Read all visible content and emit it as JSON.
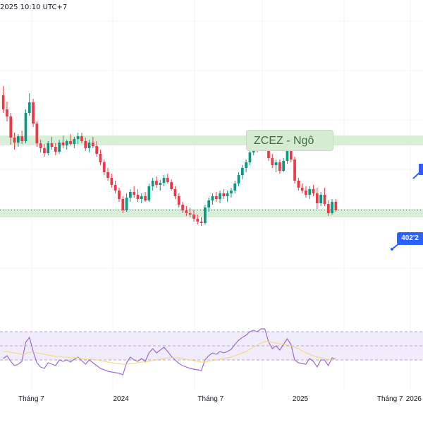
{
  "header": {
    "timestamp": "2025 10:10 UTC+7"
  },
  "symbol_box": {
    "label": "ZCEZ - Ngô"
  },
  "price_label": {
    "value": "402'2"
  },
  "colors": {
    "up": "#089981",
    "down": "#f23645",
    "zone_fill": "#d5ecd2",
    "rsi_band": "#f1ecfb",
    "rsi_line": "#9c6ad7",
    "rsi_ma": "#f5d76e",
    "accent": "#2962ff"
  },
  "time_axis": {
    "labels": [
      {
        "text": "Tháng 7",
        "slot": 8
      },
      {
        "text": "2024",
        "slot": 32
      },
      {
        "text": "Tháng 7",
        "slot": 56
      },
      {
        "text": "2025",
        "slot": 80
      },
      {
        "text": "Tháng 7",
        "slot": 104
      },
      {
        "text": "2026",
        "slot": 128
      }
    ]
  },
  "chart_data": [
    {
      "type": "candlestick",
      "title": "ZCEZ - Ngô",
      "ylim": [
        300,
        600
      ],
      "zones": [
        [
          494,
          508
        ],
        [
          392,
          404
        ]
      ],
      "current_price": 402.25,
      "candles": [
        [
          565,
          578,
          540,
          545
        ],
        [
          545,
          556,
          528,
          535
        ],
        [
          535,
          540,
          495,
          505
        ],
        [
          505,
          512,
          488,
          498
        ],
        [
          498,
          510,
          492,
          507
        ],
        [
          507,
          515,
          496,
          500
        ],
        [
          500,
          545,
          497,
          540
        ],
        [
          540,
          568,
          536,
          555
        ],
        [
          555,
          560,
          520,
          525
        ],
        [
          525,
          528,
          492,
          497
        ],
        [
          497,
          502,
          484,
          490
        ],
        [
          490,
          496,
          478,
          483
        ],
        [
          483,
          500,
          480,
          497
        ],
        [
          497,
          506,
          488,
          492
        ],
        [
          492,
          497,
          480,
          485
        ],
        [
          485,
          502,
          482,
          498
        ],
        [
          498,
          508,
          490,
          494
        ],
        [
          494,
          502,
          488,
          500
        ],
        [
          500,
          510,
          494,
          496
        ],
        [
          496,
          506,
          490,
          503
        ],
        [
          503,
          512,
          496,
          507
        ],
        [
          507,
          512,
          497,
          500
        ],
        [
          500,
          505,
          486,
          490
        ],
        [
          490,
          502,
          484,
          498
        ],
        [
          498,
          506,
          490,
          493
        ],
        [
          493,
          500,
          478,
          482
        ],
        [
          482,
          488,
          466,
          470
        ],
        [
          470,
          474,
          452,
          456
        ],
        [
          456,
          462,
          444,
          448
        ],
        [
          448,
          454,
          434,
          438
        ],
        [
          438,
          444,
          426,
          430
        ],
        [
          430,
          434,
          414,
          418
        ],
        [
          418,
          422,
          398,
          402
        ],
        [
          402,
          426,
          400,
          420
        ],
        [
          420,
          432,
          414,
          428
        ],
        [
          428,
          436,
          420,
          424
        ],
        [
          424,
          432,
          414,
          418
        ],
        [
          418,
          426,
          412,
          422
        ],
        [
          422,
          428,
          414,
          416
        ],
        [
          416,
          440,
          414,
          436
        ],
        [
          436,
          448,
          430,
          444
        ],
        [
          444,
          450,
          434,
          438
        ],
        [
          438,
          445,
          430,
          441
        ],
        [
          441,
          452,
          436,
          448
        ],
        [
          448,
          454,
          440,
          442
        ],
        [
          442,
          446,
          430,
          432
        ],
        [
          432,
          436,
          418,
          422
        ],
        [
          422,
          426,
          406,
          410
        ],
        [
          410,
          414,
          398,
          402
        ],
        [
          402,
          408,
          394,
          398
        ],
        [
          398,
          406,
          392,
          396
        ],
        [
          396,
          402,
          386,
          390
        ],
        [
          390,
          396,
          382,
          386
        ],
        [
          386,
          392,
          380,
          384
        ],
        [
          384,
          410,
          382,
          406
        ],
        [
          406,
          420,
          400,
          416
        ],
        [
          416,
          426,
          410,
          422
        ],
        [
          422,
          428,
          414,
          418
        ],
        [
          418,
          430,
          412,
          426
        ],
        [
          426,
          432,
          418,
          422
        ],
        [
          422,
          430,
          414,
          426
        ],
        [
          426,
          434,
          420,
          430
        ],
        [
          430,
          444,
          426,
          440
        ],
        [
          440,
          456,
          436,
          452
        ],
        [
          452,
          466,
          446,
          462
        ],
        [
          462,
          474,
          456,
          470
        ],
        [
          470,
          488,
          466,
          484
        ],
        [
          484,
          496,
          480,
          492
        ],
        [
          492,
          500,
          484,
          488
        ],
        [
          488,
          506,
          486,
          502
        ],
        [
          502,
          510,
          486,
          490
        ],
        [
          490,
          496,
          472,
          476
        ],
        [
          476,
          482,
          462,
          466
        ],
        [
          466,
          474,
          456,
          470
        ],
        [
          470,
          474,
          454,
          458
        ],
        [
          458,
          476,
          456,
          472
        ],
        [
          472,
          496,
          468,
          492
        ],
        [
          492,
          496,
          470,
          474
        ],
        [
          474,
          478,
          440,
          444
        ],
        [
          444,
          448,
          430,
          434
        ],
        [
          434,
          440,
          426,
          430
        ],
        [
          430,
          436,
          420,
          424
        ],
        [
          424,
          436,
          418,
          432
        ],
        [
          432,
          438,
          422,
          426
        ],
        [
          426,
          434,
          404,
          412
        ],
        [
          412,
          428,
          408,
          424
        ],
        [
          424,
          434,
          408,
          411
        ],
        [
          411,
          416,
          394,
          398
        ],
        [
          398,
          418,
          396,
          414
        ],
        [
          414,
          418,
          400,
          402
        ]
      ]
    },
    {
      "type": "line",
      "title": "RSI",
      "ylim": [
        0,
        100
      ],
      "levels": [
        70,
        50,
        30
      ],
      "series": [
        {
          "values": [
            32,
            36,
            28,
            22,
            24,
            28,
            55,
            62,
            42,
            26,
            20,
            18,
            26,
            24,
            22,
            30,
            28,
            30,
            27,
            31,
            34,
            29,
            24,
            30,
            26,
            22,
            18,
            16,
            14,
            13,
            12,
            11,
            9,
            26,
            34,
            30,
            28,
            32,
            28,
            40,
            46,
            40,
            44,
            48,
            42,
            35,
            30,
            25,
            22,
            20,
            18,
            17,
            16,
            15,
            30,
            36,
            40,
            38,
            42,
            40,
            42,
            45,
            52,
            58,
            62,
            65,
            70,
            72,
            70,
            74,
            74,
            56,
            46,
            50,
            44,
            52,
            60,
            52,
            30,
            26,
            25,
            24,
            32,
            28,
            20,
            30,
            30,
            22,
            33,
            31
          ]
        },
        {
          "values": [
            42,
            42,
            41,
            40,
            39,
            38,
            39,
            41,
            41,
            40,
            39,
            38,
            37,
            36,
            35,
            35,
            34,
            34,
            33,
            33,
            33,
            32,
            31,
            31,
            31,
            30,
            29,
            28,
            27,
            26,
            25,
            25,
            24,
            24,
            25,
            25,
            26,
            27,
            27,
            28,
            29,
            30,
            31,
            32,
            33,
            33,
            33,
            33,
            32,
            31,
            30,
            29,
            28,
            27,
            27,
            28,
            29,
            30,
            31,
            32,
            33,
            34,
            36,
            38,
            40,
            42,
            45,
            48,
            51,
            54,
            56,
            56,
            55,
            54,
            53,
            52,
            51,
            50,
            48,
            46,
            43,
            40,
            38,
            36,
            34,
            33,
            32,
            31,
            31,
            31
          ]
        }
      ]
    }
  ]
}
